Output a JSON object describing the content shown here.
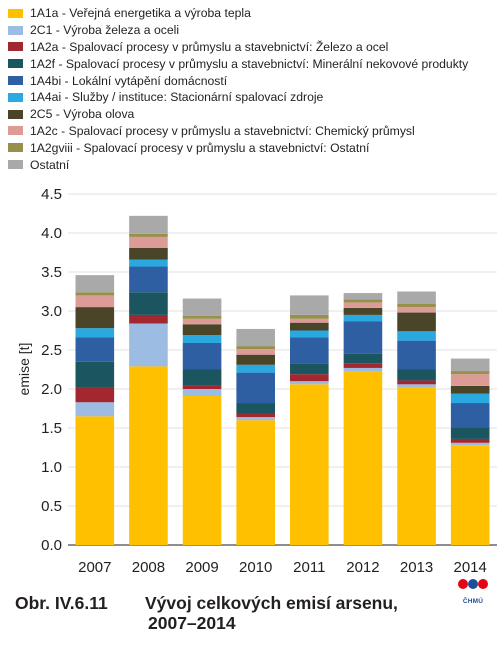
{
  "legend_items": [
    {
      "label": "1A1a - Veřejná energetika a výroba tepla",
      "color": "#ffc000"
    },
    {
      "label": "2C1 - Výroba železa a oceli",
      "color": "#9dbce3"
    },
    {
      "label": "1A2a - Spalovací procesy v průmyslu a stavebnictví: Železo a ocel",
      "color": "#a3272e"
    },
    {
      "label": "1A2f - Spalovací procesy v průmyslu a stavebnictví: Minerální nekovové produkty",
      "color": "#1a5560"
    },
    {
      "label": "1A4bi - Lokální vytápění domácností",
      "color": "#2e5fa3"
    },
    {
      "label": "1A4ai - Služby / instituce: Stacionární spalovací zdroje",
      "color": "#2aa9e0"
    },
    {
      "label": "2C5 - Výroba olova",
      "color": "#4a4428"
    },
    {
      "label": "1A2c - Spalovací procesy v průmyslu a stavebnictví: Chemický průmysl",
      "color": "#dd9b98"
    },
    {
      "label": "1A2gviii - Spalovací procesy v průmyslu a stavebnictví: Ostatní",
      "color": "#96904a"
    },
    {
      "label": "Ostatní",
      "color": "#a9a9a9"
    }
  ],
  "chart_data": {
    "type": "bar",
    "stacked": true,
    "categories": [
      "2007",
      "2008",
      "2009",
      "2010",
      "2011",
      "2012",
      "2013",
      "2014"
    ],
    "ylabel": "emise [t]",
    "ylim": [
      0,
      4.5
    ],
    "yticks": [
      "0.0",
      "0.5",
      "1.0",
      "1.5",
      "2.0",
      "2.5",
      "3.0",
      "3.5",
      "4.0",
      "4.5"
    ],
    "series": [
      {
        "name": "1A1a - Veřejná energetika a výroba tepla",
        "values": [
          1.65,
          2.29,
          1.91,
          1.6,
          2.06,
          2.22,
          2.02,
          1.28
        ]
      },
      {
        "name": "2C1 - Výroba železa a oceli",
        "values": [
          0.18,
          0.55,
          0.09,
          0.04,
          0.04,
          0.05,
          0.04,
          0.03
        ]
      },
      {
        "name": "1A2a - Spalovací procesy v průmyslu a stavebnictví: Železo a ocel",
        "values": [
          0.19,
          0.11,
          0.04,
          0.04,
          0.09,
          0.06,
          0.05,
          0.05
        ]
      },
      {
        "name": "1A2f - Spalovací procesy v průmyslu a stavebnictví: Minerální nekovové produkty",
        "values": [
          0.33,
          0.29,
          0.21,
          0.14,
          0.14,
          0.12,
          0.14,
          0.14
        ]
      },
      {
        "name": "1A4bi - Lokální vytápění domácností",
        "values": [
          0.31,
          0.33,
          0.34,
          0.39,
          0.33,
          0.42,
          0.37,
          0.32
        ]
      },
      {
        "name": "1A4ai - Služby / instituce: Stacionární spalovací zdroje",
        "values": [
          0.12,
          0.09,
          0.1,
          0.1,
          0.09,
          0.08,
          0.12,
          0.12
        ]
      },
      {
        "name": "2C5 - Výroba olova",
        "values": [
          0.27,
          0.15,
          0.14,
          0.13,
          0.1,
          0.09,
          0.24,
          0.1
        ]
      },
      {
        "name": "1A2c - Spalovací procesy v průmyslu a stavebnictví: Chemický průmysl",
        "values": [
          0.15,
          0.14,
          0.07,
          0.07,
          0.05,
          0.07,
          0.07,
          0.15
        ]
      },
      {
        "name": "1A2gviii - Spalovací procesy v průmyslu a stavebnictví: Ostatní",
        "values": [
          0.04,
          0.04,
          0.04,
          0.04,
          0.05,
          0.04,
          0.04,
          0.04
        ]
      },
      {
        "name": "Ostatní",
        "values": [
          0.22,
          0.23,
          0.22,
          0.22,
          0.25,
          0.08,
          0.16,
          0.16
        ]
      }
    ]
  },
  "caption": {
    "label": "Obr. IV.6.11",
    "title_line1": "Vývoj celkových emisí arsenu,",
    "title_line2": "2007–2014"
  },
  "logo": {
    "text": "ČHMÚ",
    "colors": [
      "#e30613",
      "#1f4e99"
    ]
  }
}
